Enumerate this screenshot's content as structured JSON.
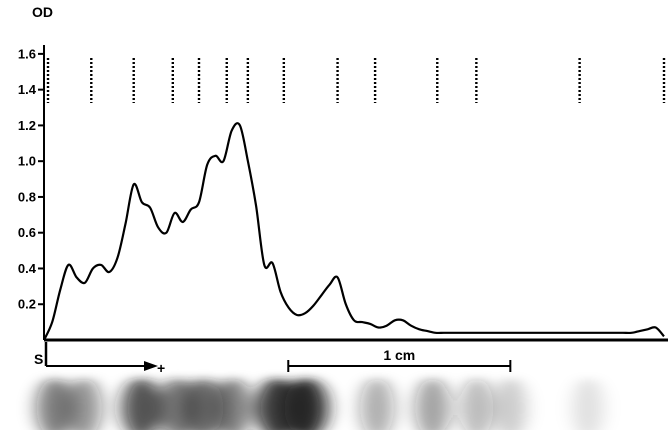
{
  "chart_data": {
    "type": "line",
    "ylabel": "OD",
    "xlabel": "",
    "ylim": [
      0,
      1.7
    ],
    "y_ticks": [
      {
        "value": 0.2,
        "label": "0.2"
      },
      {
        "value": 0.4,
        "label": "0.4"
      },
      {
        "value": 0.6,
        "label": "0.6"
      },
      {
        "value": 0.8,
        "label": "0.8"
      },
      {
        "value": 1.0,
        "label": "1.0"
      },
      {
        "value": 1.2,
        "label": "1.2"
      },
      {
        "value": 1.4,
        "label": "1.4"
      },
      {
        "value": 1.6,
        "label": "1.6"
      }
    ],
    "x_unit": "cm",
    "xlim": [
      0,
      2.81
    ],
    "series": [
      {
        "x": [
          0.0,
          0.037,
          0.073,
          0.11,
          0.147,
          0.184,
          0.22,
          0.257,
          0.294,
          0.331,
          0.367,
          0.404,
          0.441,
          0.478,
          0.514,
          0.551,
          0.588,
          0.625,
          0.661,
          0.698,
          0.735,
          0.772,
          0.808,
          0.845,
          0.882,
          0.918,
          0.955,
          0.992,
          1.029,
          1.065,
          1.102,
          1.139,
          1.176,
          1.212,
          1.249,
          1.286,
          1.322,
          1.359,
          1.396,
          1.433,
          1.469,
          1.506,
          1.543,
          1.58,
          1.616,
          1.653,
          1.69,
          1.727,
          1.763,
          1.8,
          1.837,
          1.873,
          1.91,
          1.947,
          1.984,
          2.02,
          2.057,
          2.094,
          2.131,
          2.167,
          2.204,
          2.241,
          2.278,
          2.314,
          2.351,
          2.388,
          2.424,
          2.461,
          2.498,
          2.535,
          2.571,
          2.608,
          2.645,
          2.682,
          2.718,
          2.755,
          2.792
        ],
        "values": [
          0.0,
          0.1,
          0.28,
          0.42,
          0.35,
          0.32,
          0.4,
          0.42,
          0.38,
          0.46,
          0.65,
          0.87,
          0.77,
          0.74,
          0.63,
          0.6,
          0.71,
          0.66,
          0.73,
          0.77,
          0.98,
          1.03,
          1.0,
          1.17,
          1.2,
          1.0,
          0.75,
          0.42,
          0.43,
          0.27,
          0.18,
          0.14,
          0.15,
          0.19,
          0.25,
          0.31,
          0.35,
          0.2,
          0.11,
          0.1,
          0.09,
          0.07,
          0.08,
          0.11,
          0.11,
          0.08,
          0.06,
          0.05,
          0.04,
          0.04,
          0.04,
          0.04,
          0.04,
          0.04,
          0.04,
          0.04,
          0.04,
          0.04,
          0.04,
          0.04,
          0.04,
          0.04,
          0.04,
          0.04,
          0.04,
          0.04,
          0.04,
          0.04,
          0.04,
          0.04,
          0.04,
          0.04,
          0.04,
          0.05,
          0.06,
          0.07,
          0.02
        ]
      }
    ],
    "band_markers_x": [
      0.0,
      0.213,
      0.404,
      0.58,
      0.698,
      0.823,
      0.918,
      1.08,
      1.322,
      1.491,
      1.771,
      1.947,
      2.412,
      2.81
    ],
    "annotations": {
      "start_label": "S",
      "direction_label": "+",
      "scale_bar_label": "1 cm",
      "scale_bar_length_cm": 1.0,
      "scale_bar_start_cm": 1.1
    }
  },
  "gel_strip": {
    "description_color": "#1a1a1a",
    "bands": [
      {
        "x": 0.05,
        "intensity": 0.55
      },
      {
        "x": 0.18,
        "intensity": 0.45
      },
      {
        "x": 0.44,
        "intensity": 0.75
      },
      {
        "x": 0.6,
        "intensity": 0.6
      },
      {
        "x": 0.72,
        "intensity": 0.65
      },
      {
        "x": 0.85,
        "intensity": 0.55
      },
      {
        "x": 1.05,
        "intensity": 0.85
      },
      {
        "x": 1.18,
        "intensity": 0.95
      },
      {
        "x": 1.5,
        "intensity": 0.35
      },
      {
        "x": 1.75,
        "intensity": 0.4
      },
      {
        "x": 1.95,
        "intensity": 0.3
      },
      {
        "x": 2.1,
        "intensity": 0.2
      },
      {
        "x": 2.45,
        "intensity": 0.12
      }
    ]
  }
}
